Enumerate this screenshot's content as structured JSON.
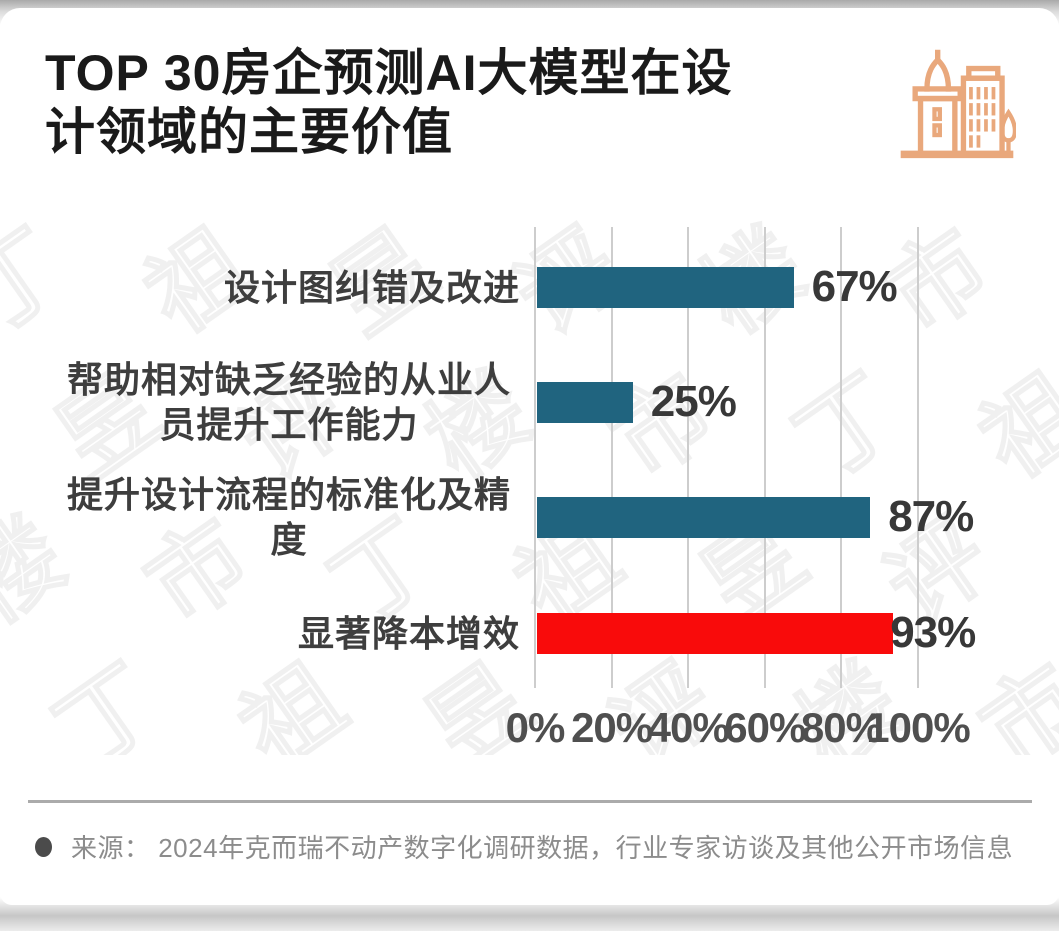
{
  "header": {
    "title": "TOP 30房企预测AI大模型在设计领域的主要价值",
    "title_lines": [
      "TOP 30房企预测AI大模型在设",
      "计领域的主要价值"
    ],
    "icon": "buildings-icon"
  },
  "chart_data": {
    "type": "bar",
    "orientation": "horizontal",
    "title": "TOP 30房企预测AI大模型在设计领域的主要价值",
    "categories": [
      "设计图纠错及改进",
      "帮助相对缺乏经验的从业人员提升工作能力",
      "提升设计流程的标准化及精度",
      "显著降本增效"
    ],
    "values": [
      67,
      25,
      87,
      93
    ],
    "value_labels": [
      "67%",
      "25%",
      "87%",
      "93%"
    ],
    "bar_colors": [
      "#20647F",
      "#20647F",
      "#20647F",
      "#F90B0B"
    ],
    "xlim": [
      0,
      100
    ],
    "ticks": [
      0,
      20,
      40,
      60,
      80,
      100
    ],
    "tick_labels": [
      "0%",
      "20%",
      "40%",
      "60%",
      "80%",
      "100%"
    ],
    "grid": true,
    "legend": "none"
  },
  "watermark": {
    "text": "丁祖昱评楼市"
  },
  "footer": {
    "source": "来源： 2024年克而瑞不动产数字化调研数据，行业专家访谈及其他公开市场信息"
  },
  "colors": {
    "bar_teal": "#20647F",
    "bar_red": "#F90B0B",
    "icon_orange": "#E9A87C",
    "gridline": "#CDCDCD",
    "title_text": "#1A1A1A",
    "label_text": "#3E3E3E",
    "value_text": "#383838",
    "axis_text": "#4F4F4F",
    "source_text": "#8C8C8C"
  }
}
